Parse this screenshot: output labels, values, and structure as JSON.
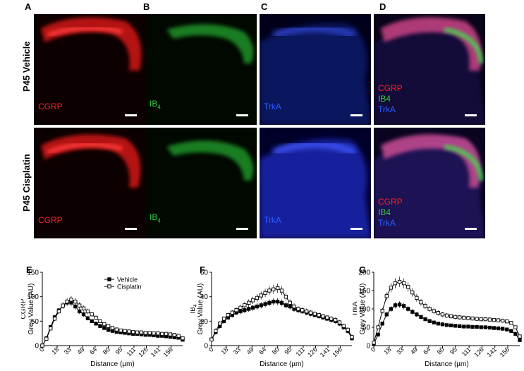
{
  "figure": {
    "panel_letters": [
      "A",
      "B",
      "C",
      "D"
    ],
    "rows": [
      {
        "label": "P45 Vehicle"
      },
      {
        "label": "P45 Cisplatin"
      }
    ],
    "channels": {
      "cgrp": "CGRP",
      "ib4_base": "IB",
      "ib4_sub": "4",
      "trka": "TrkA",
      "merged": [
        "CGRP",
        "IB4",
        "TrkA"
      ]
    },
    "colors": {
      "cgrp": "#ff2020",
      "ib4": "#2ecc40",
      "trka": "#2a5cff"
    }
  },
  "chart_data": [
    {
      "type": "line",
      "panel": "E",
      "ylabel_line1": "CGRP",
      "ylabel_line2": "Grey Value (AU)",
      "xlabel": "Distance (µm)",
      "ylim": [
        0,
        150
      ],
      "yticks": [
        0,
        50,
        100,
        150
      ],
      "xlim": [
        0,
        170
      ],
      "xtick_labels": [
        "0",
        "18",
        "33",
        "49",
        "64",
        "80",
        "95",
        "111",
        "126",
        "141",
        "156"
      ],
      "xticks": [
        0,
        18,
        33,
        49,
        64,
        80,
        95,
        111,
        126,
        141,
        156
      ],
      "legend": [
        "Vehicle",
        "Cisplatin"
      ],
      "series": [
        {
          "name": "Vehicle",
          "marker": "filled-square",
          "x": [
            0,
            5,
            10,
            15,
            20,
            25,
            30,
            35,
            40,
            45,
            50,
            55,
            60,
            65,
            70,
            75,
            80,
            85,
            90,
            95,
            100,
            105,
            110,
            115,
            120,
            125,
            130,
            135,
            140,
            145,
            150,
            155,
            160,
            165,
            170
          ],
          "y": [
            0,
            15,
            38,
            58,
            72,
            82,
            88,
            88,
            80,
            70,
            64,
            56,
            50,
            45,
            40,
            36,
            32,
            30,
            28,
            27,
            26,
            25,
            24,
            24,
            23,
            22,
            22,
            21,
            20,
            20,
            19,
            18,
            17,
            16,
            12
          ]
        },
        {
          "name": "Cisplatin",
          "marker": "open-square",
          "x": [
            0,
            5,
            10,
            15,
            20,
            25,
            30,
            35,
            40,
            45,
            50,
            55,
            60,
            65,
            70,
            75,
            80,
            85,
            90,
            95,
            100,
            105,
            110,
            115,
            120,
            125,
            130,
            135,
            140,
            145,
            150,
            155,
            160,
            165,
            170
          ],
          "y": [
            0,
            14,
            35,
            55,
            70,
            82,
            90,
            94,
            90,
            82,
            76,
            70,
            64,
            57,
            50,
            44,
            40,
            36,
            33,
            31,
            30,
            29,
            28,
            27,
            27,
            26,
            26,
            25,
            25,
            24,
            24,
            23,
            22,
            20,
            15
          ]
        }
      ]
    },
    {
      "type": "line",
      "panel": "F",
      "ylabel_line1": "IB",
      "ylabel_sub": "4",
      "ylabel_line2": "Grey Value (AU)",
      "xlabel": "Distance (µm)",
      "ylim": [
        0,
        60
      ],
      "yticks": [
        0,
        20,
        40,
        60
      ],
      "xlim": [
        0,
        170
      ],
      "xtick_labels": [
        "0",
        "18",
        "33",
        "49",
        "64",
        "80",
        "95",
        "111",
        "126",
        "141",
        "156"
      ],
      "xticks": [
        0,
        18,
        33,
        49,
        64,
        80,
        95,
        111,
        126,
        141,
        156
      ],
      "series": [
        {
          "name": "Vehicle",
          "marker": "filled-square",
          "x": [
            0,
            5,
            10,
            15,
            20,
            25,
            30,
            35,
            40,
            45,
            50,
            55,
            60,
            65,
            70,
            75,
            80,
            85,
            90,
            95,
            100,
            105,
            110,
            115,
            120,
            125,
            130,
            135,
            140,
            145,
            150,
            155,
            160,
            165,
            170
          ],
          "y": [
            5,
            11,
            16,
            20,
            23,
            25,
            27,
            28,
            29,
            30,
            31,
            32,
            33,
            34,
            35,
            36,
            36,
            35,
            33,
            32,
            30,
            29,
            28,
            27,
            26,
            25,
            24,
            23,
            22,
            21,
            20,
            18,
            15,
            12,
            6
          ]
        },
        {
          "name": "Cisplatin",
          "marker": "open-square",
          "x": [
            0,
            5,
            10,
            15,
            20,
            25,
            30,
            35,
            40,
            45,
            50,
            55,
            60,
            65,
            70,
            75,
            80,
            85,
            90,
            95,
            100,
            105,
            110,
            115,
            120,
            125,
            130,
            135,
            140,
            145,
            150,
            155,
            160,
            165,
            170
          ],
          "y": [
            5,
            12,
            18,
            22,
            25,
            27,
            29,
            31,
            33,
            35,
            37,
            39,
            41,
            43,
            45,
            46,
            47,
            45,
            40,
            35,
            32,
            30,
            29,
            28,
            27,
            26,
            25,
            24,
            23,
            22,
            21,
            19,
            16,
            13,
            7
          ]
        }
      ]
    },
    {
      "type": "line",
      "panel": "G",
      "ylabel_line1": "TrkA",
      "ylabel_line2": "Grey Value (AU)",
      "xlabel": "Distance (µm)",
      "ylim": [
        0,
        200
      ],
      "yticks": [
        0,
        50,
        100,
        150,
        200
      ],
      "xlim": [
        0,
        170
      ],
      "xtick_labels": [
        "0",
        "18",
        "33",
        "49",
        "64",
        "80",
        "95",
        "111",
        "126",
        "141",
        "156"
      ],
      "xticks": [
        0,
        18,
        33,
        49,
        64,
        80,
        95,
        111,
        126,
        141,
        156
      ],
      "series": [
        {
          "name": "Vehicle",
          "marker": "filled-square",
          "x": [
            0,
            5,
            10,
            15,
            20,
            25,
            30,
            35,
            40,
            45,
            50,
            55,
            60,
            65,
            70,
            75,
            80,
            85,
            90,
            95,
            100,
            105,
            110,
            115,
            120,
            125,
            130,
            135,
            140,
            145,
            150,
            155,
            160,
            165,
            170
          ],
          "y": [
            5,
            30,
            60,
            85,
            100,
            110,
            112,
            108,
            100,
            92,
            85,
            78,
            72,
            67,
            63,
            60,
            58,
            56,
            55,
            54,
            53,
            52,
            52,
            51,
            51,
            50,
            50,
            49,
            48,
            47,
            46,
            44,
            40,
            32,
            15
          ]
        },
        {
          "name": "Cisplatin",
          "marker": "open-square",
          "x": [
            0,
            5,
            10,
            15,
            20,
            25,
            30,
            35,
            40,
            45,
            50,
            55,
            60,
            65,
            70,
            75,
            80,
            85,
            90,
            95,
            100,
            105,
            110,
            115,
            120,
            125,
            130,
            135,
            140,
            145,
            150,
            155,
            160,
            165,
            170
          ],
          "y": [
            8,
            50,
            95,
            135,
            158,
            170,
            174,
            170,
            160,
            145,
            130,
            118,
            108,
            100,
            94,
            89,
            85,
            82,
            80,
            78,
            77,
            76,
            75,
            74,
            73,
            72,
            72,
            71,
            70,
            69,
            68,
            66,
            62,
            50,
            25
          ]
        }
      ]
    }
  ]
}
